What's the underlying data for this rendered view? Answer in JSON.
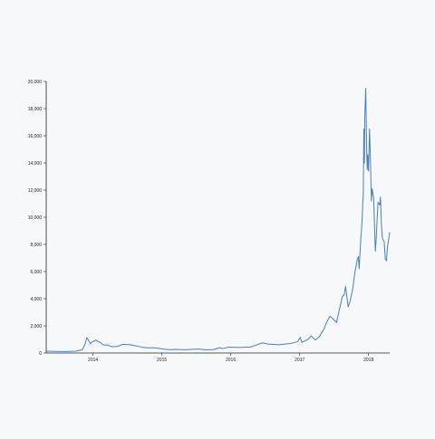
{
  "colors": {
    "background": "#f6f8fa",
    "line": "#4a80b8",
    "axis": "#222222"
  },
  "chart_data": {
    "type": "line",
    "title": "",
    "xlabel": "",
    "ylabel": "",
    "grid": false,
    "xlim": [
      "2013-04-28",
      "2018-04-23"
    ],
    "ylim": [
      0,
      20000
    ],
    "x_ticks": [
      "2014",
      "2015",
      "2016",
      "2017",
      "2018"
    ],
    "y_ticks": [
      "0",
      "2,000",
      "4,000",
      "6,000",
      "8,000",
      "10,000",
      "12,000",
      "14,000",
      "16,000",
      "18,000",
      "20,000"
    ],
    "series": [
      {
        "x": [
          "2013-04-28",
          "2013-06-15",
          "2013-08-15",
          "2013-10-01",
          "2013-11-05",
          "2013-11-20",
          "2013-11-29",
          "2013-12-10",
          "2013-12-18",
          "2013-12-25",
          "2014-01-15",
          "2014-02-10",
          "2014-02-25",
          "2014-03-20",
          "2014-04-10",
          "2014-05-10",
          "2014-06-05",
          "2014-07-15",
          "2014-08-20",
          "2014-09-20",
          "2014-10-20",
          "2014-11-20",
          "2014-12-20",
          "2015-01-14",
          "2015-02-15",
          "2015-03-15",
          "2015-05-01",
          "2015-07-15",
          "2015-08-25",
          "2015-10-01",
          "2015-11-04",
          "2015-11-20",
          "2015-12-20",
          "2016-02-15",
          "2016-04-15",
          "2016-06-17",
          "2016-07-20",
          "2016-09-15",
          "2016-11-15",
          "2016-12-20",
          "2017-01-04",
          "2017-01-12",
          "2017-02-15",
          "2017-03-03",
          "2017-03-25",
          "2017-04-15",
          "2017-05-10",
          "2017-05-25",
          "2017-06-10",
          "2017-06-20",
          "2017-07-15",
          "2017-08-15",
          "2017-08-25",
          "2017-09-01",
          "2017-09-15",
          "2017-09-25",
          "2017-10-10",
          "2017-10-20",
          "2017-11-01",
          "2017-11-08",
          "2017-11-12",
          "2017-11-20",
          "2017-11-28",
          "2017-12-01",
          "2017-12-04",
          "2017-12-07",
          "2017-12-10",
          "2017-12-12",
          "2017-12-17",
          "2017-12-20",
          "2017-12-22",
          "2017-12-25",
          "2017-12-28",
          "2018-01-01",
          "2018-01-06",
          "2018-01-10",
          "2018-01-16",
          "2018-01-20",
          "2018-01-28",
          "2018-02-02",
          "2018-02-06",
          "2018-02-10",
          "2018-02-20",
          "2018-03-01",
          "2018-03-05",
          "2018-03-10",
          "2018-03-15",
          "2018-03-20",
          "2018-03-25",
          "2018-03-31",
          "2018-04-06",
          "2018-04-12",
          "2018-04-16",
          "2018-04-23"
        ],
        "values": [
          135,
          120,
          110,
          130,
          230,
          650,
          1130,
          900,
          680,
          790,
          950,
          760,
          600,
          580,
          470,
          480,
          630,
          620,
          520,
          420,
          380,
          380,
          330,
          280,
          240,
          270,
          240,
          290,
          230,
          250,
          390,
          330,
          430,
          410,
          440,
          740,
          660,
          610,
          710,
          830,
          1150,
          780,
          1010,
          1260,
          960,
          1210,
          1780,
          2300,
          2700,
          2600,
          2250,
          4150,
          4300,
          4900,
          3400,
          3800,
          4800,
          5900,
          6800,
          7100,
          6200,
          8200,
          9800,
          11000,
          11700,
          16500,
          14000,
          17500,
          19500,
          16800,
          15000,
          13500,
          14600,
          13400,
          16500,
          14800,
          11200,
          12100,
          11400,
          9200,
          7500,
          8300,
          11100,
          10900,
          11500,
          9500,
          8500,
          8300,
          8200,
          6900,
          6800,
          7900,
          8200,
          8900
        ]
      }
    ]
  }
}
